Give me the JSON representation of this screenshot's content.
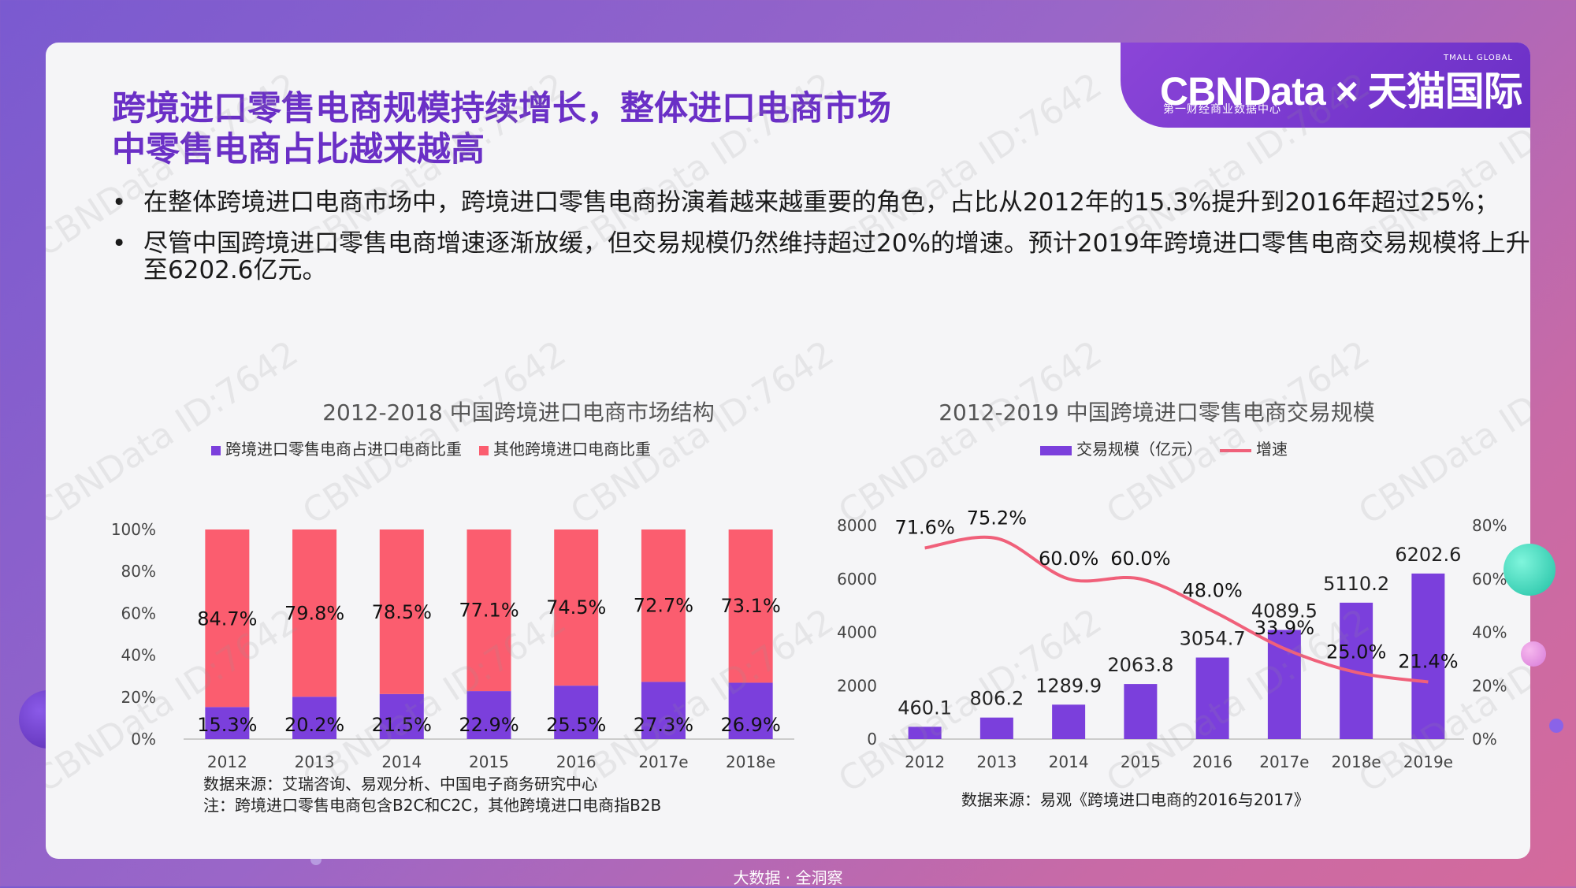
{
  "brand": {
    "logo": "CBNData × 天猫国际",
    "sub": "第一财经商业数据中心",
    "tmall": "TMALL GLOBAL"
  },
  "title": [
    "跨境进口零售电商规模持续增长，整体进口电商市场",
    "中零售电商占比越来越高"
  ],
  "bullets": [
    "在整体跨境进口电商市场中，跨境进口零售电商扮演着越来越重要的角色，占比从2012年的15.3%提升到2016年超过25%；",
    "尽管中国跨境进口零售电商增速逐渐放缓，但交易规模仍然维持超过20%的增速。预计2019年跨境进口零售电商交易规模将上升至6202.6亿元。"
  ],
  "watermark": "CBNData ID:7642",
  "footer": "大数据 · 全洞察",
  "colors": {
    "purple": "#7b3fdc",
    "red": "#fb5d6f",
    "line": "#f0607a",
    "title": "#6a2fc6"
  },
  "chart_data": [
    {
      "type": "bar",
      "stacked": true,
      "title": "2012-2018 中国跨境进口电商市场结构",
      "categories": [
        "2012",
        "2013",
        "2014",
        "2015",
        "2016",
        "2017e",
        "2018e"
      ],
      "series": [
        {
          "name": "跨境进口零售电商占进口电商比重",
          "values": [
            15.3,
            20.2,
            21.5,
            22.9,
            25.5,
            27.3,
            26.9
          ],
          "labels": [
            "15.3%",
            "20.2%",
            "21.5%",
            "22.9%",
            "25.5%",
            "27.3%",
            "26.9%"
          ]
        },
        {
          "name": "其他跨境进口电商比重",
          "values": [
            84.7,
            79.8,
            78.5,
            77.1,
            74.5,
            72.7,
            73.1
          ],
          "labels": [
            "84.7%",
            "79.8%",
            "78.5%",
            "77.1%",
            "74.5%",
            "72.7%",
            "73.1%"
          ]
        }
      ],
      "yticks": [
        "0%",
        "20%",
        "40%",
        "60%",
        "80%",
        "100%"
      ],
      "ylim": [
        0,
        100
      ],
      "source": [
        "数据来源：艾瑞咨询、易观分析、中国电子商务研究中心",
        "注：跨境进口零售电商包含B2C和C2C，其他跨境进口电商指B2B"
      ]
    },
    {
      "type": "bar+line",
      "title": "2012-2019 中国跨境进口零售电商交易规模",
      "categories": [
        "2012",
        "2013",
        "2014",
        "2015",
        "2016",
        "2017e",
        "2018e",
        "2019e"
      ],
      "bar_series": {
        "name": "交易规模（亿元）",
        "values": [
          460.1,
          806.2,
          1289.9,
          2063.8,
          3054.7,
          4089.5,
          5110.2,
          6202.6
        ],
        "labels": [
          "460.1",
          "806.2",
          "1289.9",
          "2063.8",
          "3054.7",
          "4089.5",
          "5110.2",
          "6202.6"
        ]
      },
      "line_series": {
        "name": "增速",
        "values": [
          71.6,
          75.2,
          60.0,
          60.0,
          48.0,
          33.9,
          25.0,
          21.4
        ],
        "labels": [
          "71.6%",
          "75.2%",
          "60.0%",
          "60.0%",
          "48.0%",
          "33.9%",
          "25.0%",
          "21.4%"
        ]
      },
      "yticks_left": [
        "0",
        "2000",
        "4000",
        "6000",
        "8000"
      ],
      "yticks_right": [
        "0%",
        "20%",
        "40%",
        "60%",
        "80%"
      ],
      "ylim_left": [
        0,
        8000
      ],
      "ylim_right": [
        0,
        80
      ],
      "source": [
        "数据来源：易观《跨境进口电商的2016与2017》"
      ]
    }
  ]
}
